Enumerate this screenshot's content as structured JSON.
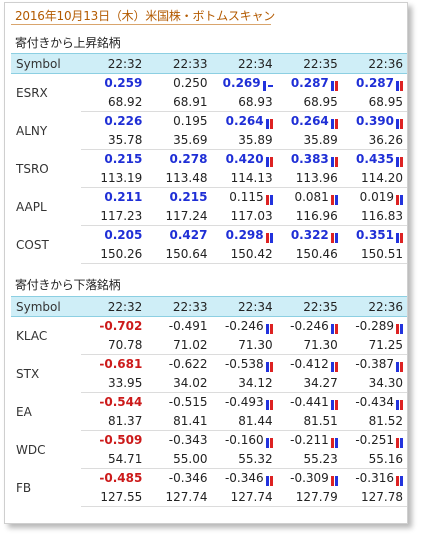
{
  "page_title": "2016年10月13日（木）米国株・ボトムスキャン",
  "rise": {
    "label": "寄付きから上昇銘柄",
    "headers": [
      "Symbol",
      "22:32",
      "22:33",
      "22:34",
      "22:35",
      "22:36"
    ],
    "rows": [
      {
        "symbol": "ESRX",
        "changes": [
          {
            "v": "0.259",
            "s": "blue",
            "m": ""
          },
          {
            "v": "0.250",
            "s": "plain",
            "m": ""
          },
          {
            "v": "0.269",
            "s": "blue",
            "m": "bd"
          },
          {
            "v": "0.287",
            "s": "blue",
            "m": "bb"
          },
          {
            "v": "0.287",
            "s": "blue",
            "m": "bb"
          }
        ],
        "prices": [
          "68.92",
          "68.91",
          "68.93",
          "68.95",
          "68.95"
        ]
      },
      {
        "symbol": "ALNY",
        "changes": [
          {
            "v": "0.226",
            "s": "blue",
            "m": ""
          },
          {
            "v": "0.195",
            "s": "plain",
            "m": ""
          },
          {
            "v": "0.264",
            "s": "blue",
            "m": "bb"
          },
          {
            "v": "0.264",
            "s": "blue",
            "m": "bb"
          },
          {
            "v": "0.390",
            "s": "blue",
            "m": "bb"
          }
        ],
        "prices": [
          "35.78",
          "35.69",
          "35.89",
          "35.89",
          "36.26"
        ]
      },
      {
        "symbol": "TSRO",
        "changes": [
          {
            "v": "0.215",
            "s": "blue",
            "m": ""
          },
          {
            "v": "0.278",
            "s": "blue",
            "m": ""
          },
          {
            "v": "0.420",
            "s": "blue",
            "m": "bb"
          },
          {
            "v": "0.383",
            "s": "blue",
            "m": "bb"
          },
          {
            "v": "0.435",
            "s": "blue",
            "m": "bb"
          }
        ],
        "prices": [
          "113.19",
          "113.48",
          "114.13",
          "113.96",
          "114.20"
        ]
      },
      {
        "symbol": "AAPL",
        "changes": [
          {
            "v": "0.211",
            "s": "blue",
            "m": ""
          },
          {
            "v": "0.215",
            "s": "blue",
            "m": ""
          },
          {
            "v": "0.115",
            "s": "plain",
            "m": "br"
          },
          {
            "v": "0.081",
            "s": "plain",
            "m": "br"
          },
          {
            "v": "0.019",
            "s": "plain",
            "m": "br"
          }
        ],
        "prices": [
          "117.23",
          "117.24",
          "117.03",
          "116.96",
          "116.83"
        ]
      },
      {
        "symbol": "COST",
        "changes": [
          {
            "v": "0.205",
            "s": "blue",
            "m": ""
          },
          {
            "v": "0.427",
            "s": "blue",
            "m": ""
          },
          {
            "v": "0.298",
            "s": "blue",
            "m": "br"
          },
          {
            "v": "0.322",
            "s": "blue",
            "m": "br"
          },
          {
            "v": "0.351",
            "s": "blue",
            "m": "bb"
          }
        ],
        "prices": [
          "150.26",
          "150.64",
          "150.42",
          "150.46",
          "150.51"
        ]
      }
    ]
  },
  "fall": {
    "label": "寄付きから下落銘柄",
    "headers": [
      "Symbol",
      "22:32",
      "22:33",
      "22:34",
      "22:35",
      "22:36"
    ],
    "rows": [
      {
        "symbol": "KLAC",
        "changes": [
          {
            "v": "-0.702",
            "s": "red",
            "m": ""
          },
          {
            "v": "-0.491",
            "s": "plain",
            "m": ""
          },
          {
            "v": "-0.246",
            "s": "plain",
            "m": "bb"
          },
          {
            "v": "-0.246",
            "s": "plain",
            "m": "bb"
          },
          {
            "v": "-0.289",
            "s": "plain",
            "m": "br"
          }
        ],
        "prices": [
          "70.78",
          "71.02",
          "71.30",
          "71.30",
          "71.25"
        ]
      },
      {
        "symbol": "STX",
        "changes": [
          {
            "v": "-0.681",
            "s": "red",
            "m": ""
          },
          {
            "v": "-0.622",
            "s": "plain",
            "m": ""
          },
          {
            "v": "-0.538",
            "s": "plain",
            "m": "bb"
          },
          {
            "v": "-0.412",
            "s": "plain",
            "m": "bb"
          },
          {
            "v": "-0.387",
            "s": "plain",
            "m": "bb"
          }
        ],
        "prices": [
          "33.95",
          "34.02",
          "34.12",
          "34.27",
          "34.30"
        ]
      },
      {
        "symbol": "EA",
        "changes": [
          {
            "v": "-0.544",
            "s": "red",
            "m": ""
          },
          {
            "v": "-0.515",
            "s": "plain",
            "m": ""
          },
          {
            "v": "-0.493",
            "s": "plain",
            "m": "bb"
          },
          {
            "v": "-0.441",
            "s": "plain",
            "m": "bb"
          },
          {
            "v": "-0.434",
            "s": "plain",
            "m": "bb"
          }
        ],
        "prices": [
          "81.37",
          "81.41",
          "81.44",
          "81.51",
          "81.52"
        ]
      },
      {
        "symbol": "WDC",
        "changes": [
          {
            "v": "-0.509",
            "s": "red",
            "m": ""
          },
          {
            "v": "-0.343",
            "s": "plain",
            "m": ""
          },
          {
            "v": "-0.160",
            "s": "plain",
            "m": "bb"
          },
          {
            "v": "-0.211",
            "s": "plain",
            "m": "br"
          },
          {
            "v": "-0.251",
            "s": "plain",
            "m": "br"
          }
        ],
        "prices": [
          "54.71",
          "55.00",
          "55.32",
          "55.23",
          "55.16"
        ]
      },
      {
        "symbol": "FB",
        "changes": [
          {
            "v": "-0.485",
            "s": "red",
            "m": ""
          },
          {
            "v": "-0.346",
            "s": "plain",
            "m": ""
          },
          {
            "v": "-0.346",
            "s": "plain",
            "m": "bb"
          },
          {
            "v": "-0.309",
            "s": "plain",
            "m": "br"
          },
          {
            "v": "-0.316",
            "s": "plain",
            "m": "br"
          }
        ],
        "prices": [
          "127.55",
          "127.74",
          "127.74",
          "127.79",
          "127.78"
        ]
      }
    ]
  },
  "colors": {
    "blue": "#1f2fd6",
    "red": "#cc1a1a",
    "header_bg": "#cfeef7",
    "title": "#b35a00"
  },
  "marker_icons": {
    "bb": "blue-red-bars-icon",
    "br": "red-blue-bars-icon",
    "bd": "blue-bar-dash-icon"
  }
}
